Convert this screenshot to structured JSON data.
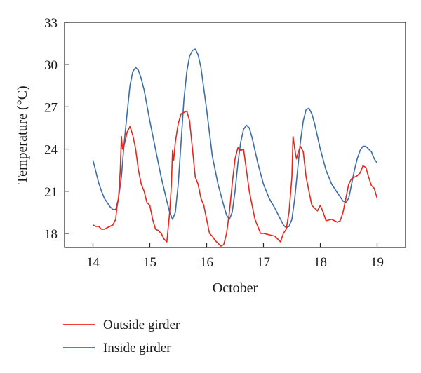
{
  "chart_data": {
    "type": "line",
    "title": "",
    "xlabel": "October",
    "ylabel": "Temperature (°C)",
    "xlim": [
      13.5,
      19.5
    ],
    "ylim": [
      17,
      33
    ],
    "xticks": [
      14,
      15,
      16,
      17,
      18,
      19
    ],
    "xtick_labels": [
      "14",
      "15",
      "16",
      "17",
      "18",
      "19"
    ],
    "yticks": [
      18,
      21,
      24,
      27,
      30,
      33
    ],
    "ytick_labels": [
      "18",
      "21",
      "24",
      "27",
      "30",
      "33"
    ],
    "grid": false,
    "legend_position": "bottom-left (below plot)",
    "series": [
      {
        "name": "Outside girder",
        "color": "#e8261c",
        "x": [
          14.0,
          14.05,
          14.1,
          14.15,
          14.2,
          14.3,
          14.35,
          14.4,
          14.42,
          14.45,
          14.48,
          14.5,
          14.52,
          14.55,
          14.58,
          14.6,
          14.65,
          14.7,
          14.75,
          14.8,
          14.85,
          14.9,
          14.95,
          15.0,
          15.05,
          15.1,
          15.15,
          15.2,
          15.25,
          15.3,
          15.35,
          15.38,
          15.4,
          15.42,
          15.45,
          15.5,
          15.55,
          15.6,
          15.65,
          15.7,
          15.75,
          15.8,
          15.85,
          15.9,
          15.95,
          16.0,
          16.05,
          16.1,
          16.15,
          16.2,
          16.25,
          16.3,
          16.35,
          16.4,
          16.45,
          16.5,
          16.55,
          16.6,
          16.65,
          16.7,
          16.75,
          16.8,
          16.85,
          16.9,
          16.95,
          17.0,
          17.1,
          17.2,
          17.25,
          17.3,
          17.35,
          17.4,
          17.45,
          17.5,
          17.52,
          17.55,
          17.58,
          17.6,
          17.65,
          17.7,
          17.75,
          17.8,
          17.85,
          17.9,
          17.95,
          18.0,
          18.05,
          18.1,
          18.2,
          18.3,
          18.35,
          18.4,
          18.45,
          18.5,
          18.55,
          18.6,
          18.65,
          18.7,
          18.75,
          18.8,
          18.85,
          18.9,
          18.95,
          19.0
        ],
        "values": [
          18.6,
          18.5,
          18.5,
          18.3,
          18.3,
          18.5,
          18.6,
          19.0,
          19.8,
          20.5,
          22.5,
          24.9,
          24.0,
          24.3,
          24.8,
          25.2,
          25.6,
          25.0,
          24.0,
          22.5,
          21.5,
          21.0,
          20.2,
          20.0,
          19.0,
          18.3,
          18.2,
          18.0,
          17.6,
          17.4,
          19.5,
          21.5,
          23.9,
          23.2,
          24.5,
          25.8,
          26.5,
          26.6,
          26.7,
          26.0,
          24.0,
          22.0,
          21.5,
          20.5,
          20.0,
          19.0,
          18.0,
          17.8,
          17.5,
          17.3,
          17.1,
          17.2,
          18.0,
          19.5,
          21.5,
          23.3,
          24.1,
          23.9,
          24.0,
          22.5,
          21.0,
          20.0,
          19.0,
          18.5,
          18.0,
          18.0,
          17.9,
          17.8,
          17.6,
          17.4,
          18.0,
          18.3,
          19.5,
          22.0,
          24.9,
          24.0,
          23.3,
          23.6,
          24.2,
          23.8,
          22.0,
          21.0,
          20.0,
          19.8,
          19.6,
          20.0,
          19.5,
          18.9,
          19.0,
          18.8,
          18.9,
          19.5,
          20.5,
          21.5,
          21.9,
          22.0,
          22.1,
          22.3,
          22.8,
          22.7,
          22.0,
          21.4,
          21.2,
          20.5
        ]
      },
      {
        "name": "Inside girder",
        "color": "#3c6ea5",
        "x": [
          14.0,
          14.05,
          14.1,
          14.15,
          14.2,
          14.3,
          14.35,
          14.4,
          14.45,
          14.5,
          14.55,
          14.6,
          14.65,
          14.7,
          14.75,
          14.8,
          14.85,
          14.9,
          15.0,
          15.1,
          15.2,
          15.3,
          15.35,
          15.4,
          15.45,
          15.5,
          15.55,
          15.6,
          15.65,
          15.7,
          15.75,
          15.8,
          15.85,
          15.9,
          16.0,
          16.1,
          16.2,
          16.3,
          16.35,
          16.4,
          16.45,
          16.5,
          16.55,
          16.6,
          16.65,
          16.7,
          16.75,
          16.8,
          16.9,
          17.0,
          17.1,
          17.2,
          17.3,
          17.35,
          17.4,
          17.45,
          17.5,
          17.55,
          17.6,
          17.65,
          17.7,
          17.75,
          17.8,
          17.85,
          17.9,
          18.0,
          18.1,
          18.2,
          18.3,
          18.4,
          18.45,
          18.5,
          18.55,
          18.6,
          18.65,
          18.7,
          18.75,
          18.8,
          18.85,
          18.9,
          18.95,
          19.0
        ],
        "values": [
          23.2,
          22.4,
          21.6,
          21.0,
          20.5,
          19.9,
          19.7,
          19.7,
          20.5,
          22.0,
          24.5,
          26.5,
          28.5,
          29.5,
          29.8,
          29.6,
          29.0,
          28.2,
          26.0,
          24.0,
          22.0,
          20.3,
          19.5,
          19.0,
          19.5,
          21.5,
          24.5,
          27.5,
          29.5,
          30.6,
          31.0,
          31.1,
          30.7,
          29.8,
          26.8,
          23.5,
          21.5,
          20.0,
          19.3,
          19.0,
          19.5,
          21.0,
          23.0,
          24.5,
          25.4,
          25.7,
          25.5,
          24.8,
          23.0,
          21.5,
          20.5,
          19.8,
          19.0,
          18.6,
          18.4,
          18.5,
          19.0,
          20.5,
          22.5,
          24.5,
          26.0,
          26.8,
          26.9,
          26.5,
          25.8,
          24.0,
          22.5,
          21.5,
          20.9,
          20.3,
          20.2,
          20.5,
          21.5,
          22.5,
          23.3,
          23.9,
          24.2,
          24.2,
          24.0,
          23.8,
          23.3,
          23.0
        ]
      }
    ]
  }
}
